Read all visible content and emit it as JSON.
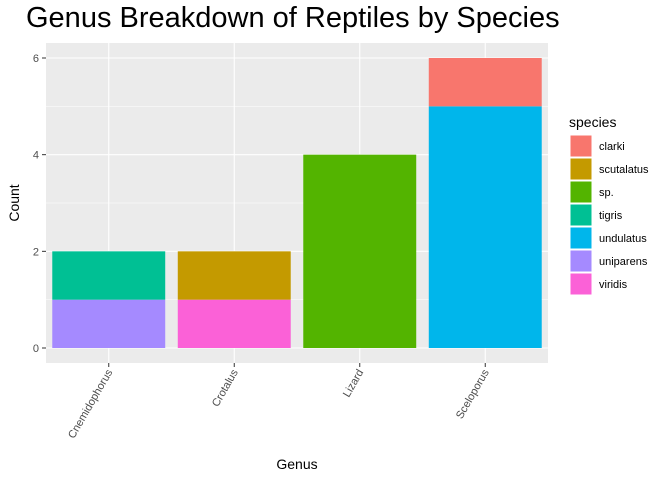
{
  "chart_data": {
    "type": "bar",
    "stacked": true,
    "title": "Genus Breakdown of Reptiles by Species",
    "xlabel": "Genus",
    "ylabel": "Count",
    "ylim": [
      0,
      6.3
    ],
    "yticks": [
      0,
      2,
      4,
      6
    ],
    "categories": [
      "Cnemidophorus",
      "Crotalus",
      "Lizard",
      "Sceloporus"
    ],
    "legend_title": "species",
    "legend_position": "right",
    "grid": true,
    "series": [
      {
        "name": "clarki",
        "color": "#F8766D",
        "values": [
          0,
          0,
          0,
          1
        ]
      },
      {
        "name": "scutalatus",
        "color": "#C49A00",
        "values": [
          0,
          1,
          0,
          0
        ]
      },
      {
        "name": "sp.",
        "color": "#53B400",
        "values": [
          0,
          0,
          4,
          0
        ]
      },
      {
        "name": "tigris",
        "color": "#00C094",
        "values": [
          1,
          0,
          0,
          0
        ]
      },
      {
        "name": "undulatus",
        "color": "#00B6EB",
        "values": [
          0,
          0,
          0,
          5
        ]
      },
      {
        "name": "uniparens",
        "color": "#A58AFF",
        "values": [
          1,
          0,
          0,
          0
        ]
      },
      {
        "name": "viridis",
        "color": "#FB61D7",
        "values": [
          0,
          1,
          0,
          0
        ]
      }
    ]
  },
  "colors": {
    "panel_background": "#EBEBEB",
    "grid_major": "#FFFFFF"
  }
}
